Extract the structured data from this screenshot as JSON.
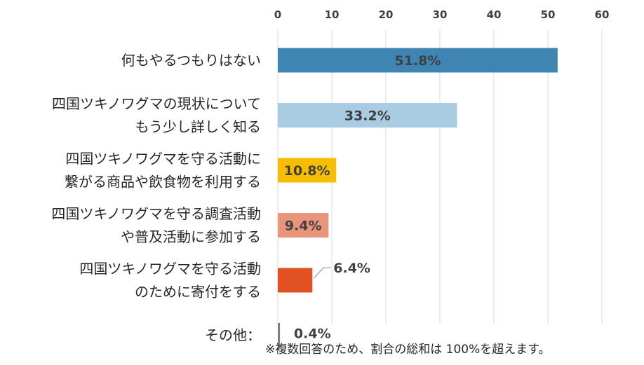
{
  "chart_data": {
    "type": "bar",
    "orientation": "horizontal",
    "xlim": [
      0,
      60
    ],
    "xticks": [
      0,
      10,
      20,
      30,
      40,
      50,
      60
    ],
    "grid": true,
    "categories": [
      [
        "何もやるつもりはない"
      ],
      [
        "四国ツキノワグマの現状について",
        "もう少し詳しく知る"
      ],
      [
        "四国ツキノワグマを守る活動に",
        "繋がる商品や飲食物を利用する"
      ],
      [
        "四国ツキノワグマを守る調査活動",
        "や普及活動に参加する"
      ],
      [
        "四国ツキノワグマを守る活動",
        "のために寄付をする"
      ],
      [
        "その他："
      ]
    ],
    "values": [
      51.8,
      33.2,
      10.8,
      9.4,
      6.4,
      0.4
    ],
    "data_labels": [
      "51.8%",
      "33.2%",
      "10.8%",
      "9.4%",
      "6.4%",
      "0.4%"
    ],
    "colors": [
      "#3E85B3",
      "#A9CCE3",
      "#F7BE00",
      "#E8957C",
      "#E15121",
      "#7F7F7F"
    ]
  },
  "footnote": "※複数回答のため、割合の総和は 100%を超えます。"
}
